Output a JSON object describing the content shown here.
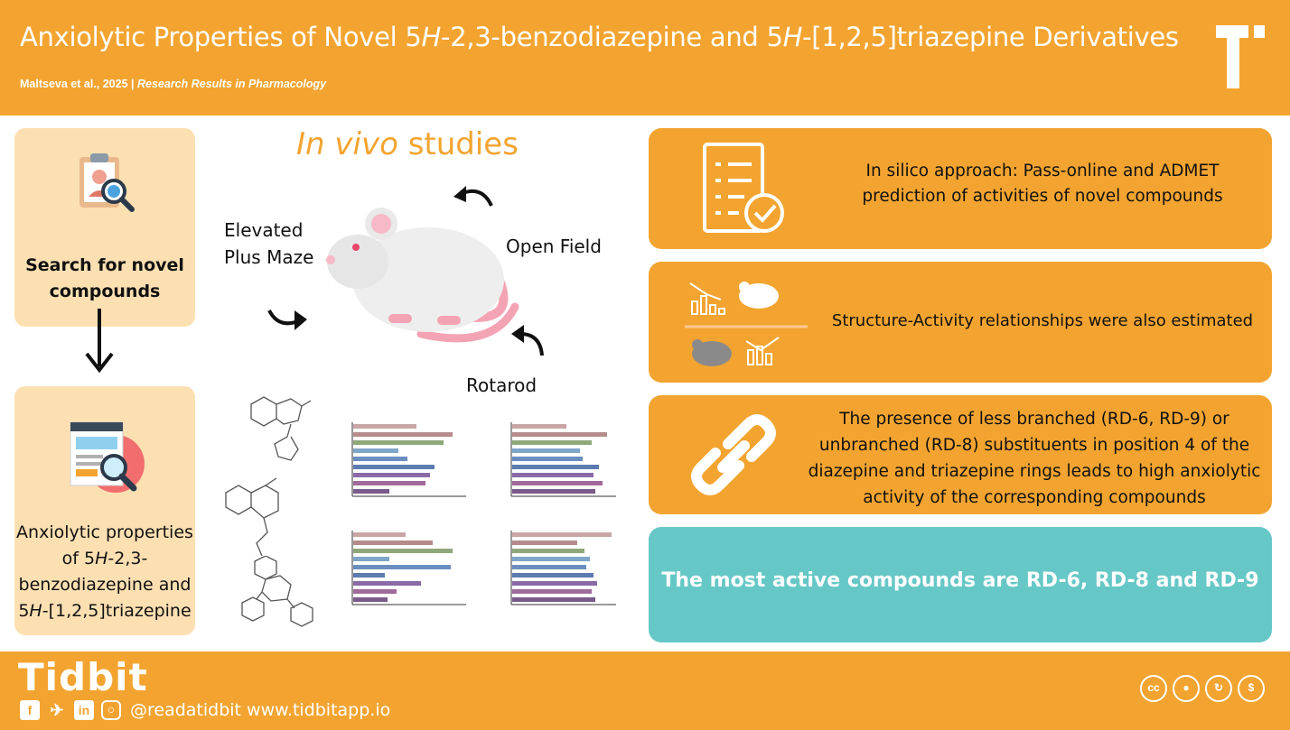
{
  "header": {
    "title_part1": "Anxiolytic Properties of Novel 5",
    "title_h1": "H",
    "title_part2": "-2,3-benzodiazepine and 5",
    "title_h2": "H",
    "title_part3": "-[1,2,5]triazepine Derivatives",
    "citation": "Maltseva et al., 2025 |",
    "journal": "Research Results in Pharmacology"
  },
  "left": {
    "box1_text": "Search for novel compounds",
    "box2_line1": "Anxiolytic properties",
    "box2_line2a": "of 5",
    "box2_line2h": "H",
    "box2_line2b": "-2,3-",
    "box2_line3": "benzodiazepine and",
    "box2_line4a": "5",
    "box2_line4h": "H",
    "box2_line4b": "-[1,2,5]triazepine"
  },
  "middle": {
    "heading_italic": "In vivo",
    "heading_rest": "studies",
    "label_epm_1": "Elevated",
    "label_epm_2": "Plus Maze",
    "label_openfield": "Open Field",
    "label_rotarod": "Rotarod"
  },
  "right": {
    "box1": "In silico approach: Pass-online and ADMET prediction of activities of novel compounds",
    "box2": "Structure-Activity relationships were also estimated",
    "box3": "The presence of less branched (RD-6, RD-9) or unbranched (RD-8) substituents in position 4 of the diazepine and triazepine rings leads to high anxiolytic activity of the corresponding compounds",
    "box4": "The most active compounds are RD-6, RD-8 and RD-9"
  },
  "footer": {
    "brand": "Tidbit",
    "handle": "@readatidbit www.tidbitapp.io",
    "social_icons": [
      "facebook-icon",
      "twitter-icon",
      "linkedin-icon",
      "instagram-icon"
    ],
    "license_icons": [
      "cc-icon",
      "by-icon",
      "sa-icon",
      "nc-icon"
    ]
  },
  "colors": {
    "orange": "#f3a430",
    "peach": "#fde0b2",
    "teal": "#66c8c6",
    "white": "#ffffff"
  }
}
